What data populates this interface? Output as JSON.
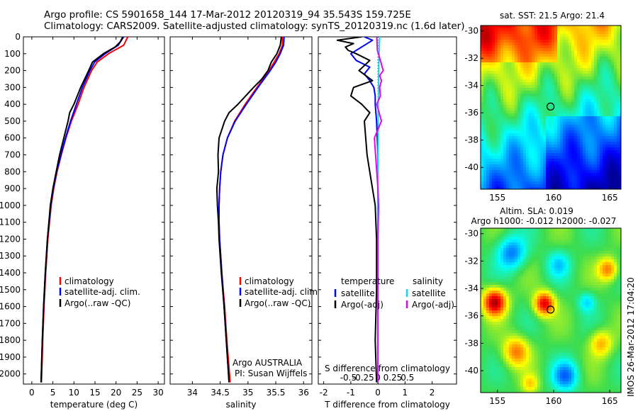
{
  "header": {
    "line1": "Argo profile: CS 5901658_144 17-Mar-2012 20120319_94 35.543S 159.725E",
    "line2": "Climatology: CARS2009. Satellite-adjusted climatology: synTS_20120319.nc (1.6d later)"
  },
  "colors": {
    "climatology": "#ff0000",
    "satellite": "#0000ff",
    "argo": "#000000",
    "cyan": "#00e5ee",
    "magenta": "#ee00ee"
  },
  "watermark": "IMOS 26-Mar-2012 17:04:20",
  "depth_ticks": [
    "0",
    "100",
    "200",
    "300",
    "400",
    "500",
    "600",
    "700",
    "800",
    "900",
    "1000",
    "1100",
    "1200",
    "1300",
    "1400",
    "1500",
    "1600",
    "1700",
    "1800",
    "1900",
    "2000"
  ],
  "chart_data": [
    {
      "id": "temperature",
      "type": "line",
      "xlabel": "temperature (deg C)",
      "ylabel": "depth",
      "xlim": [
        -2,
        31.5
      ],
      "ylim": [
        2060,
        0
      ],
      "xticks": [
        0,
        5,
        10,
        15,
        20,
        25,
        30
      ],
      "xtick_labels": [
        "0",
        "5",
        "10",
        "15",
        "20",
        "25",
        "30"
      ],
      "legend": [
        "climatology",
        "satellite-adj. clim.",
        "Argo(..raw -QC)"
      ],
      "series": [
        {
          "name": "climatology",
          "color": "#ff0000",
          "depth": [
            0,
            50,
            100,
            150,
            200,
            300,
            400,
            500,
            600,
            700,
            800,
            900,
            1000,
            1200,
            1400,
            1600,
            1800,
            2050
          ],
          "values": [
            22.8,
            21.8,
            18.2,
            15.5,
            14.2,
            12.4,
            11.0,
            9.4,
            8.1,
            7.0,
            6.0,
            5.2,
            4.6,
            3.8,
            3.3,
            2.9,
            2.6,
            2.3
          ]
        },
        {
          "name": "satellite-adj. clim.",
          "color": "#0000ff",
          "depth": [
            0,
            50,
            100,
            150,
            200,
            300,
            400,
            500,
            600,
            700,
            800,
            900,
            1000,
            1200,
            1400,
            1600,
            1800,
            2050
          ],
          "values": [
            21.8,
            20.5,
            17.4,
            14.9,
            13.8,
            12.0,
            10.6,
            9.2,
            8.0,
            6.9,
            5.9,
            5.1,
            4.5,
            3.7,
            3.2,
            2.8,
            2.5,
            2.2
          ]
        },
        {
          "name": "Argo(..raw -QC)",
          "color": "#000000",
          "depth": [
            0,
            30,
            60,
            100,
            150,
            200,
            300,
            400,
            450,
            500,
            600,
            700,
            800,
            900,
            1000,
            1200,
            1400,
            1600,
            1800,
            2050
          ],
          "values": [
            21.6,
            21.0,
            19.8,
            17.0,
            14.4,
            13.5,
            11.6,
            10.0,
            9.0,
            8.6,
            7.6,
            6.6,
            5.8,
            5.0,
            4.4,
            3.7,
            3.2,
            2.8,
            2.5,
            2.2
          ]
        }
      ]
    },
    {
      "id": "salinity",
      "type": "line",
      "xlabel": "salinity",
      "xlim": [
        33.6,
        36.15
      ],
      "ylim": [
        2060,
        0
      ],
      "xticks": [
        34,
        34.5,
        35,
        35.5,
        36
      ],
      "xtick_labels": [
        "34",
        "34.5",
        "35",
        "35.5",
        "36"
      ],
      "legend": [
        "climatology",
        "satellite-adj. clim.",
        "Argo(..raw -QC)"
      ],
      "annotation": [
        "Argo AUSTRALIA",
        "PI: Susan Wijffels"
      ],
      "series": [
        {
          "name": "climatology",
          "color": "#ff0000",
          "depth": [
            0,
            50,
            100,
            150,
            200,
            300,
            400,
            500,
            600,
            700,
            800,
            900,
            1000,
            1100,
            1200,
            1400,
            1600,
            1800,
            2050
          ],
          "values": [
            35.62,
            35.62,
            35.56,
            35.47,
            35.38,
            35.16,
            34.95,
            34.76,
            34.63,
            34.55,
            34.51,
            34.49,
            34.48,
            34.48,
            34.49,
            34.53,
            34.58,
            34.62,
            34.68
          ]
        },
        {
          "name": "satellite-adj. clim.",
          "color": "#0000ff",
          "depth": [
            0,
            50,
            100,
            150,
            200,
            300,
            400,
            500,
            600,
            700,
            800,
            900,
            1000,
            1100,
            1200,
            1400,
            1600,
            1800,
            2050
          ],
          "values": [
            35.65,
            35.64,
            35.58,
            35.5,
            35.4,
            35.18,
            34.97,
            34.77,
            34.63,
            34.55,
            34.51,
            34.49,
            34.48,
            34.48,
            34.49,
            34.53,
            34.57,
            34.61,
            34.66
          ]
        },
        {
          "name": "Argo(..raw -QC)",
          "color": "#000000",
          "depth": [
            0,
            50,
            100,
            150,
            200,
            250,
            300,
            400,
            450,
            500,
            600,
            700,
            800,
            900,
            1000,
            1100,
            1200,
            1400,
            1600,
            1800,
            2050
          ],
          "values": [
            35.6,
            35.58,
            35.52,
            35.42,
            35.36,
            35.25,
            35.1,
            34.82,
            34.66,
            34.58,
            34.48,
            34.46,
            34.47,
            34.44,
            34.45,
            34.47,
            34.48,
            34.52,
            34.57,
            34.61,
            34.66
          ]
        }
      ]
    },
    {
      "id": "difference",
      "type": "line",
      "xlabel": "T difference from climatology",
      "x2label": "S difference from climatology",
      "xlim": [
        -2.2,
        2.9
      ],
      "ylim": [
        2060,
        0
      ],
      "xticks": [
        -2,
        -1,
        0,
        1,
        2
      ],
      "xtick_labels": [
        "-2",
        "-1",
        "0",
        "1",
        "2"
      ],
      "x2_tick_labels": [
        "-0.5",
        "-0.25",
        "0",
        "0.25",
        "0.5"
      ],
      "legend_left_title": "temperature",
      "legend_right_title": "salinity",
      "legend": [
        "satellite",
        "Argo(-adj)",
        "satellite",
        "Argo(-adj)"
      ],
      "series": [
        {
          "name": "T satellite",
          "color": "#0000ff",
          "depth": [
            0,
            20,
            60,
            100,
            140,
            180,
            220,
            260,
            300,
            350,
            400,
            500,
            700,
            1000,
            1500,
            2050
          ],
          "values": [
            -0.5,
            -0.2,
            -0.6,
            -1.0,
            -0.8,
            -0.3,
            -0.5,
            -0.3,
            -0.15,
            -0.1,
            -0.1,
            -0.05,
            0.0,
            0.0,
            0.0,
            0.0
          ]
        },
        {
          "name": "T Argo(-adj)",
          "color": "#000000",
          "depth": [
            0,
            20,
            40,
            60,
            80,
            100,
            140,
            200,
            260,
            300,
            350,
            400,
            450,
            500,
            600,
            700,
            800,
            1000,
            1200,
            1500,
            1800,
            2050
          ],
          "values": [
            -0.6,
            -1.5,
            -0.9,
            -1.2,
            -1.1,
            -0.8,
            -0.3,
            -0.7,
            -0.2,
            -0.9,
            -1.0,
            -0.6,
            -0.3,
            -0.5,
            -0.45,
            -0.4,
            -0.3,
            -0.1,
            -0.05,
            -0.05,
            -0.1,
            -0.05
          ]
        },
        {
          "name": "S satellite",
          "color": "#00e5ee",
          "depth": [
            0,
            100,
            200,
            300,
            400,
            600,
            900,
            1200,
            1600,
            2050
          ],
          "values": [
            0.03,
            0.02,
            0.01,
            0.01,
            0.005,
            0.005,
            0.0,
            0.0,
            0.0,
            0.0
          ]
        },
        {
          "name": "S Argo(-adj)",
          "color": "#ee00ee",
          "depth": [
            0,
            80,
            150,
            200,
            230,
            260,
            300,
            350,
            400,
            450,
            500,
            550,
            600,
            650,
            700,
            800,
            900,
            1000,
            1200,
            1500,
            1800,
            2050
          ],
          "values": [
            -0.02,
            -0.01,
            0.05,
            0.09,
            0.03,
            0.06,
            0.03,
            0.04,
            -0.02,
            0.02,
            0.06,
            0.0,
            -0.06,
            -0.05,
            -0.04,
            -0.02,
            0.0,
            0.01,
            0.0,
            0.0,
            0.0,
            0.0
          ]
        }
      ]
    },
    {
      "id": "sst_map",
      "type": "heatmap",
      "title": "sat. SST: 21.5  Argo: 21.4",
      "xlim": [
        153.5,
        166
      ],
      "ylim": [
        -41.6,
        -29.6
      ],
      "xticks": [
        155,
        160,
        165
      ],
      "yticks": [
        -30,
        -32,
        -34,
        -36,
        -38,
        -40
      ],
      "xtick_labels": [
        "155",
        "160",
        "165"
      ],
      "ytick_labels": [
        "-30",
        "-32",
        "-34",
        "-36",
        "-38",
        "-40"
      ],
      "marker": [
        159.725,
        -35.543
      ]
    },
    {
      "id": "sla_map",
      "type": "heatmap",
      "title": "Altim. SLA: 0.019",
      "subtitle": "Argo h1000: -0.012  h2000: -0.027",
      "xlim": [
        153.5,
        166
      ],
      "ylim": [
        -41.6,
        -29.6
      ],
      "xticks": [
        155,
        160,
        165
      ],
      "yticks": [
        -30,
        -32,
        -34,
        -36,
        -38,
        -40
      ],
      "xtick_labels": [
        "155",
        "160",
        "165"
      ],
      "ytick_labels": [
        "-30",
        "-32",
        "-34",
        "-36",
        "-38",
        "-40"
      ],
      "marker": [
        159.725,
        -35.543
      ]
    }
  ]
}
